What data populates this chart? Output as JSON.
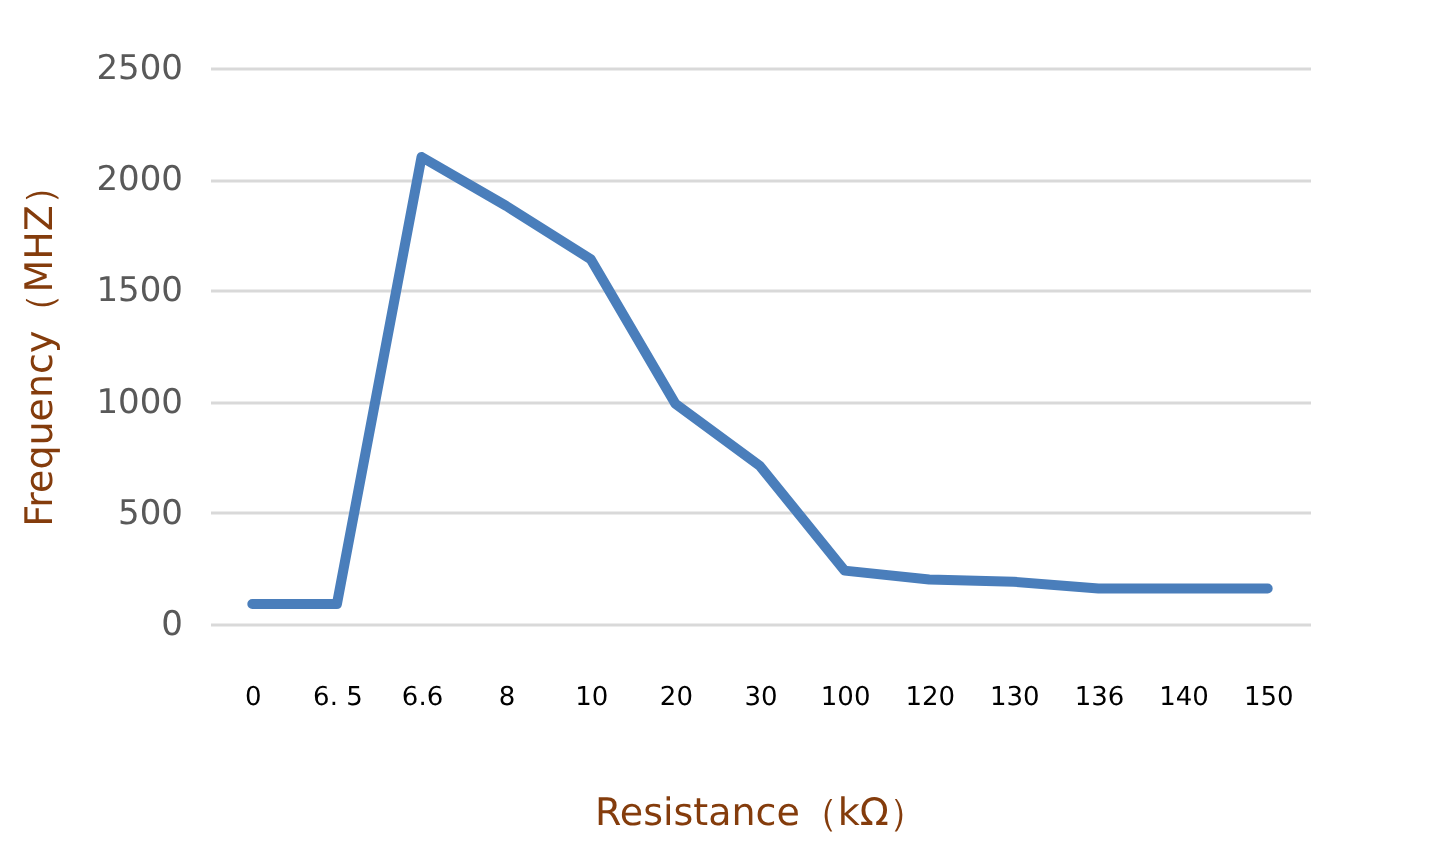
{
  "chart_data": {
    "type": "line",
    "xlabel": "Resistance（kΩ）",
    "ylabel": "Frequency（MHZ）",
    "categories": [
      "0",
      "6. 5",
      "6.6",
      "8",
      "10",
      "20",
      "30",
      "100",
      "120",
      "130",
      "136",
      "140",
      "150"
    ],
    "series": [
      {
        "color": "#4a7ebb",
        "values": [
          90,
          90,
          2100,
          1880,
          1640,
          990,
          710,
          240,
          200,
          190,
          160,
          160,
          160
        ]
      }
    ],
    "ylim": [
      0,
      2500
    ],
    "yticks": [
      0,
      500,
      1000,
      1500,
      2000,
      2500
    ],
    "grid": "y",
    "marker": "none",
    "line_style": "solid"
  }
}
